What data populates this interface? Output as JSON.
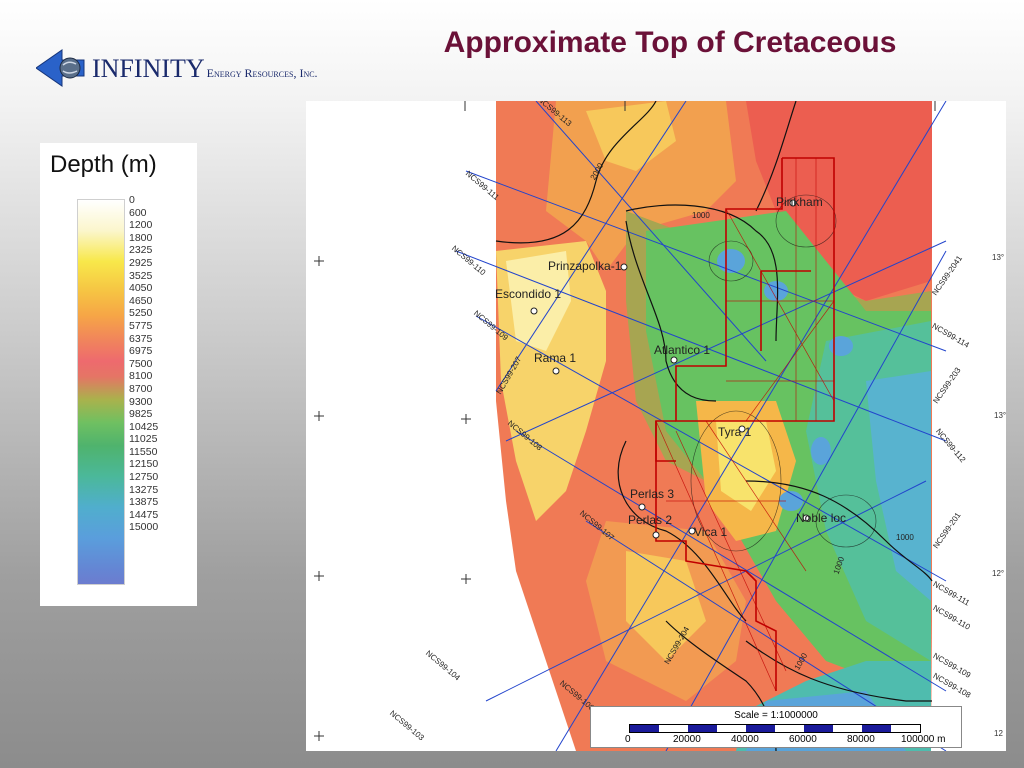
{
  "header": {
    "logo_main": "INFINITY",
    "logo_sub": "Energy Resources, Inc.",
    "title": "Approximate Top of Cretaceous"
  },
  "legend": {
    "title": "Depth (m)",
    "values": [
      "0",
      "600",
      "1200",
      "1800",
      "2325",
      "2925",
      "3525",
      "4050",
      "4650",
      "5250",
      "5775",
      "6375",
      "6975",
      "7500",
      "8100",
      "8700",
      "9300",
      "9825",
      "10425",
      "11025",
      "11550",
      "12150",
      "12750",
      "13275",
      "13875",
      "14475",
      "15000"
    ]
  },
  "wells": [
    {
      "name": "Pinkham"
    },
    {
      "name": "Prinzapolka-1"
    },
    {
      "name": "Escondido 1"
    },
    {
      "name": "Rama 1"
    },
    {
      "name": "Atlantico 1"
    },
    {
      "name": "Tyra 1"
    },
    {
      "name": "Perlas 3"
    },
    {
      "name": "Perlas 2"
    },
    {
      "name": "Vica 1"
    },
    {
      "name": "Noble loc"
    }
  ],
  "seismic_lines": [
    "NCS99-113",
    "NCS99-111",
    "NCS99-110",
    "NCS99-109",
    "NCS99-207",
    "NCS99-108",
    "NCS99-107",
    "NCS99-104",
    "NCS99-106",
    "NCS99-103",
    "NCS99-204",
    "NCS99-2041",
    "NCS99-114",
    "NCS99-203",
    "NCS99-112",
    "NCS99-201",
    "NCS99-109",
    "NCS99-108",
    "NCS99-111",
    "NCS99-110"
  ],
  "contour_labels": [
    "2000",
    "1000",
    "1000",
    "1000",
    "1000"
  ],
  "coord_labels": [
    "13°",
    "13°",
    "12°",
    "12"
  ],
  "scale": {
    "title": "Scale = 1:1000000",
    "ticks": [
      "0",
      "20000",
      "40000",
      "60000",
      "80000",
      "100000 m"
    ]
  },
  "colors": {
    "title": "#6b1138",
    "logo": "#1a2a6c",
    "contour_block": "#c00000",
    "seismic_line": "#2244cc"
  }
}
